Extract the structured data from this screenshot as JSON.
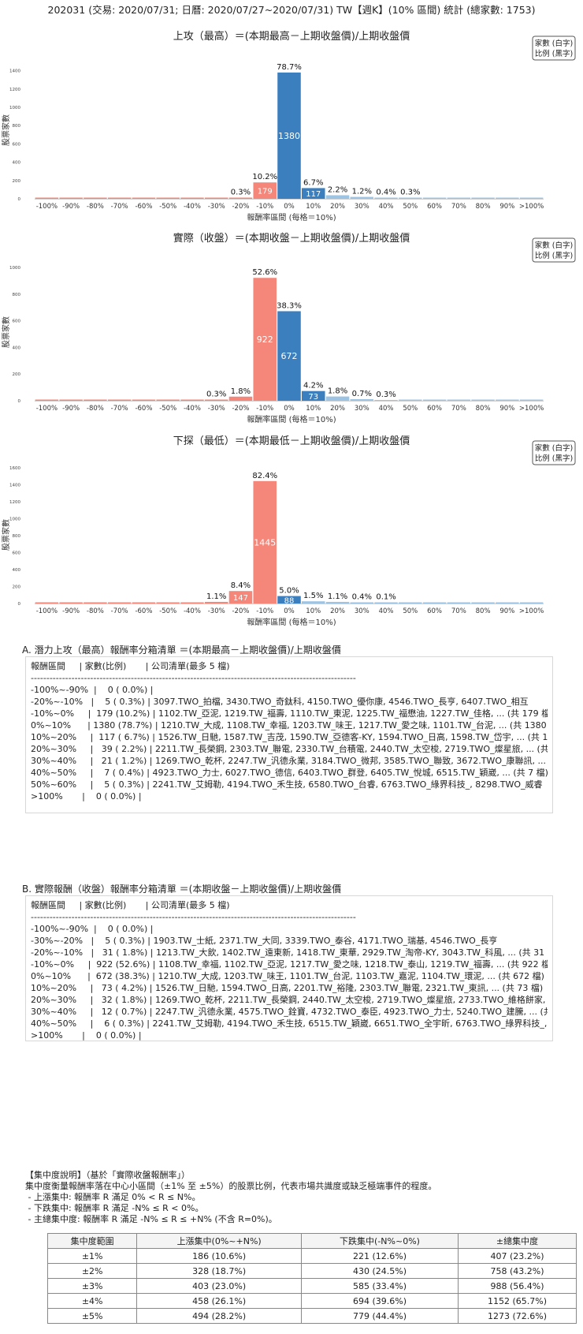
{
  "header": {
    "title": "202031 (交易: 2020/07/31; 日曆: 2020/07/27~2020/07/31) TW【週K】(10% 區間) 統計 (總家數: 1753)"
  },
  "legend_box": {
    "line1": "家數 (白字)",
    "line2": "比例 (黑字)"
  },
  "colors": {
    "negative": "#f4877a",
    "positive": "#3b7fbf",
    "small_bar": "#9ec4e4",
    "axis": "#cfcfcf"
  },
  "chart_data": [
    {
      "type": "bar",
      "title": "上攻（最高）＝(本期最高－上期收盤價)/上期收盤價",
      "xlabel": "報酬率區間 (每格＝10%)",
      "ylabel": "股票家數",
      "categories": [
        "-100%",
        "-90%",
        "-80%",
        "-70%",
        "-60%",
        "-50%",
        "-40%",
        "-30%",
        "-20%",
        "-10%",
        "0%",
        "10%",
        "20%",
        "30%",
        "40%",
        "50%",
        "60%",
        "70%",
        "80%",
        "90%",
        ">100%"
      ],
      "values": [
        0,
        0,
        0,
        0,
        0,
        0,
        0,
        0,
        5,
        179,
        1380,
        117,
        39,
        21,
        7,
        5,
        0,
        0,
        0,
        0,
        0
      ],
      "percent_labels": [
        "",
        "",
        "",
        "",
        "",
        "",
        "",
        "",
        "0.3%",
        "10.2%",
        "78.7%",
        "6.7%",
        "2.2%",
        "1.2%",
        "0.4%",
        "0.3%",
        "",
        "",
        "",
        "",
        ""
      ],
      "yticks": [
        0,
        200,
        400,
        600,
        800,
        1000,
        1200,
        1400
      ],
      "ylim": [
        0,
        1500
      ]
    },
    {
      "type": "bar",
      "title": "實際（收盤）＝(本期收盤－上期收盤價)/上期收盤價",
      "xlabel": "報酬率區間 (每格＝10%)",
      "ylabel": "股票家數",
      "categories": [
        "-100%",
        "-90%",
        "-80%",
        "-70%",
        "-60%",
        "-50%",
        "-40%",
        "-30%",
        "-20%",
        "-10%",
        "0%",
        "10%",
        "20%",
        "30%",
        "40%",
        "50%",
        "60%",
        "70%",
        "80%",
        "90%",
        ">100%"
      ],
      "values": [
        0,
        0,
        0,
        0,
        0,
        0,
        0,
        5,
        31,
        922,
        672,
        73,
        32,
        12,
        6,
        0,
        0,
        0,
        0,
        0,
        0
      ],
      "percent_labels": [
        "",
        "",
        "",
        "",
        "",
        "",
        "",
        "0.3%",
        "1.8%",
        "52.6%",
        "38.3%",
        "4.2%",
        "1.8%",
        "0.7%",
        "0.3%",
        "",
        "",
        "",
        "",
        "",
        ""
      ],
      "yticks": [
        0,
        200,
        400,
        600,
        800,
        1000
      ],
      "ylim": [
        0,
        1030
      ]
    },
    {
      "type": "bar",
      "title": "下探（最低）＝(本期最低－上期收盤價)/上期收盤價",
      "xlabel": "報酬率區間 (每格＝10%)",
      "ylabel": "股票家數",
      "categories": [
        "-100%",
        "-90%",
        "-80%",
        "-70%",
        "-60%",
        "-50%",
        "-40%",
        "-30%",
        "-20%",
        "-10%",
        "0%",
        "10%",
        "20%",
        "30%",
        "40%",
        "50%",
        "60%",
        "70%",
        "80%",
        "90%",
        ">100%"
      ],
      "values": [
        0,
        0,
        0,
        0,
        0,
        0,
        0,
        19,
        147,
        1445,
        88,
        26,
        19,
        7,
        2,
        0,
        0,
        0,
        0,
        0,
        0
      ],
      "percent_labels": [
        "",
        "",
        "",
        "",
        "",
        "",
        "",
        "1.1%",
        "8.4%",
        "82.4%",
        "5.0%",
        "1.5%",
        "1.1%",
        "0.4%",
        "0.1%",
        "",
        "",
        "",
        "",
        "",
        ""
      ],
      "yticks": [
        0,
        200,
        400,
        600,
        800,
        1000,
        1200,
        1400,
        1600
      ],
      "ylim": [
        0,
        1620
      ]
    }
  ],
  "sectionA": {
    "title": "A. 潛力上攻（最高）報酬率分箱清單 ＝(本期最高－上期收盤價)/上期收盤價",
    "lines": [
      "報酬區間     | 家數(比例)       | 公司清單(最多 5 檔)",
      "--------------------------------------------------------------------------------------------------------",
      "-100%~-90%  |    0 ( 0.0%) |",
      "-20%~-10%   |    5 ( 0.3%) | 3097.TWO_拍檔, 3430.TWO_奇鈦科, 4150.TWO_優你康, 4546.TWO_長亨, 6407.TWO_相互",
      "-10%~0%     |  179 (10.2%) | 1102.TW_亞泥, 1219.TW_福壽, 1110.TW_東泥, 1225.TW_福懋油, 1227.TW_佳格, ... (共 179 檔)",
      "0%~10%      | 1380 (78.7%) | 1210.TW_大成, 1108.TW_幸福, 1203.TW_味王, 1217.TW_愛之味, 1101.TW_台泥, ... (共 1380 檔)",
      "10%~20%     |  117 ( 6.7%) | 1526.TW_日馳, 1587.TW_吉茂, 1590.TW_亞德客-KY, 1594.TWO_日高, 1598.TW_岱宇, ... (共 117 檔)",
      "20%~30%     |   39 ( 2.2%) | 2211.TW_長榮鋼, 2303.TW_聯電, 2330.TW_台積電, 2440.TW_太空梭, 2719.TWO_燦星旅, ... (共 39 檔)",
      "30%~40%     |   21 ( 1.2%) | 1269.TWO_乾杯, 2247.TW_汎德永業, 3184.TWO_微邦, 3585.TWO_聯致, 3672.TWO_康聯訊, ... (共 21 檔)",
      "40%~50%     |    7 ( 0.4%) | 4923.TWO_力士, 6027.TWO_德信, 6403.TWO_群登, 6405.TW_悅城, 6515.TW_穎崴, ... (共 7 檔)",
      "50%~60%     |    5 ( 0.3%) | 2241.TW_艾姆勒, 4194.TWO_禾生技, 6580.TWO_台睿, 6763.TWO_綠界科技_, 8298.TWO_威睿",
      ">100%       |    0 ( 0.0%) |"
    ]
  },
  "sectionB": {
    "title": "B. 實際報酬（收盤）報酬率分箱清單 ＝(本期收盤－上期收盤價)/上期收盤價",
    "lines": [
      "報酬區間     | 家數(比例)       | 公司清單(最多 5 檔)",
      "--------------------------------------------------------------------------------------------------------",
      "-100%~-90%  |    0 ( 0.0%) |",
      "-30%~-20%   |    5 ( 0.3%) | 1903.TW_士紙, 2371.TW_大同, 3339.TWO_泰谷, 4171.TWO_瑞基, 4546.TWO_長亨",
      "-20%~-10%   |   31 ( 1.8%) | 1213.TW_大飲, 1402.TW_遠東新, 1418.TW_東華, 2929.TW_淘帝-KY, 3043.TW_科風, ... (共 31 檔)",
      "-10%~0%     |  922 (52.6%) | 1108.TW_幸福, 1102.TW_亞泥, 1217.TW_愛之味, 1218.TW_泰山, 1219.TW_福壽, ... (共 922 檔)",
      "0%~10%      |  672 (38.3%) | 1210.TW_大成, 1203.TW_味王, 1101.TW_台泥, 1103.TW_嘉泥, 1104.TW_環泥, ... (共 672 檔)",
      "10%~20%     |   73 ( 4.2%) | 1526.TW_日馳, 1594.TWO_日高, 2201.TW_裕隆, 2303.TW_聯電, 2321.TW_東訊, ... (共 73 檔)",
      "20%~30%     |   32 ( 1.8%) | 1269.TWO_乾杯, 2211.TW_長榮鋼, 2440.TW_太空梭, 2719.TWO_燦星旅, 2733.TWO_維格餅家, ... (共 32 檔)",
      "30%~40%     |   12 ( 0.7%) | 2247.TW_汎德永業, 4575.TWO_銓寶, 4732.TWO_泰臣, 4923.TWO_力士, 5240.TWO_建騰, ... (共 12 檔)",
      "40%~50%     |    6 ( 0.3%) | 2241.TW_艾姆勒, 4194.TWO_禾生技, 6515.TW_穎崴, 6651.TWO_全宇昕, 6763.TWO_綠界科技_, ... (共 6 檔)",
      ">100%       |    0 ( 0.0%) |"
    ]
  },
  "notes": {
    "lines": [
      "【集中度說明】（基於「實際收盤報酬率」）",
      "集中度衡量報酬率落在中心小區間（±1% 至 ±5%）的股票比例，代表市場共識度或缺乏極端事件的程度。",
      " - 上漲集中: 報酬率 R 滿足 0% < R ≤ N%。",
      " - 下跌集中: 報酬率 R 滿足 -N% ≤ R < 0%。",
      " - 主總集中度: 報酬率 R 滿足 -N% ≤ R ≤ +N% (不含 R=0%)。"
    ]
  },
  "concentration_table": {
    "headers": [
      "集中度範圍",
      "上漲集中(0%~+N%)",
      "下跌集中(-N%~0%)",
      "±總集中度"
    ],
    "rows": [
      [
        "±1%",
        "186 (10.6%)",
        "221 (12.6%)",
        "407 (23.2%)"
      ],
      [
        "±2%",
        "328 (18.7%)",
        "430 (24.5%)",
        "758 (43.2%)"
      ],
      [
        "±3%",
        "403 (23.0%)",
        "585 (33.4%)",
        "988 (56.4%)"
      ],
      [
        "±4%",
        "458 (26.1%)",
        "694 (39.6%)",
        "1152 (65.7%)"
      ],
      [
        "±5%",
        "494 (28.2%)",
        "779 (44.4%)",
        "1273 (72.6%)"
      ]
    ]
  }
}
